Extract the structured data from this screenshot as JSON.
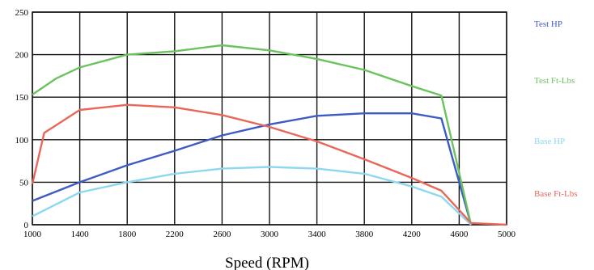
{
  "chart_data": {
    "type": "line",
    "xlabel": "Speed (RPM)",
    "ylabel": "",
    "xlim": [
      1000,
      5000
    ],
    "ylim": [
      0,
      250
    ],
    "grid": true,
    "legend_placement": "right",
    "x_ticks": [
      "1000",
      "1400",
      "1800",
      "2200",
      "2600",
      "3000",
      "3400",
      "3800",
      "4200",
      "4600",
      "5000"
    ],
    "y_ticks": [
      "0",
      "50",
      "100",
      "150",
      "200",
      "250"
    ],
    "series": [
      {
        "name": "Test HP",
        "color": "#3d5bc4",
        "x": [
          1000,
          1400,
          1800,
          2200,
          2600,
          3000,
          3400,
          3800,
          4200,
          4450,
          4700
        ],
        "y": [
          28,
          50,
          70,
          87,
          105,
          118,
          128,
          131,
          131,
          125,
          0
        ]
      },
      {
        "name": "Test Ft-Lbs",
        "color": "#6cc25f",
        "x": [
          1000,
          1200,
          1400,
          1800,
          2200,
          2600,
          3000,
          3400,
          3800,
          4200,
          4450,
          4700
        ],
        "y": [
          153,
          172,
          185,
          200,
          204,
          211,
          205,
          195,
          182,
          163,
          152,
          0
        ]
      },
      {
        "name": "Base HP",
        "color": "#8ed8ef",
        "x": [
          1000,
          1400,
          1800,
          2200,
          2600,
          3000,
          3400,
          3800,
          4200,
          4450,
          4700
        ],
        "y": [
          10,
          38,
          50,
          60,
          66,
          68,
          66,
          60,
          45,
          33,
          0
        ]
      },
      {
        "name": "Base Ft-Lbs",
        "color": "#e9675a",
        "x": [
          1000,
          1100,
          1400,
          1800,
          2200,
          2600,
          3000,
          3400,
          3800,
          4200,
          4450,
          4700,
          5000
        ],
        "y": [
          48,
          108,
          135,
          141,
          138,
          129,
          115,
          98,
          77,
          55,
          40,
          2,
          0
        ]
      }
    ]
  }
}
